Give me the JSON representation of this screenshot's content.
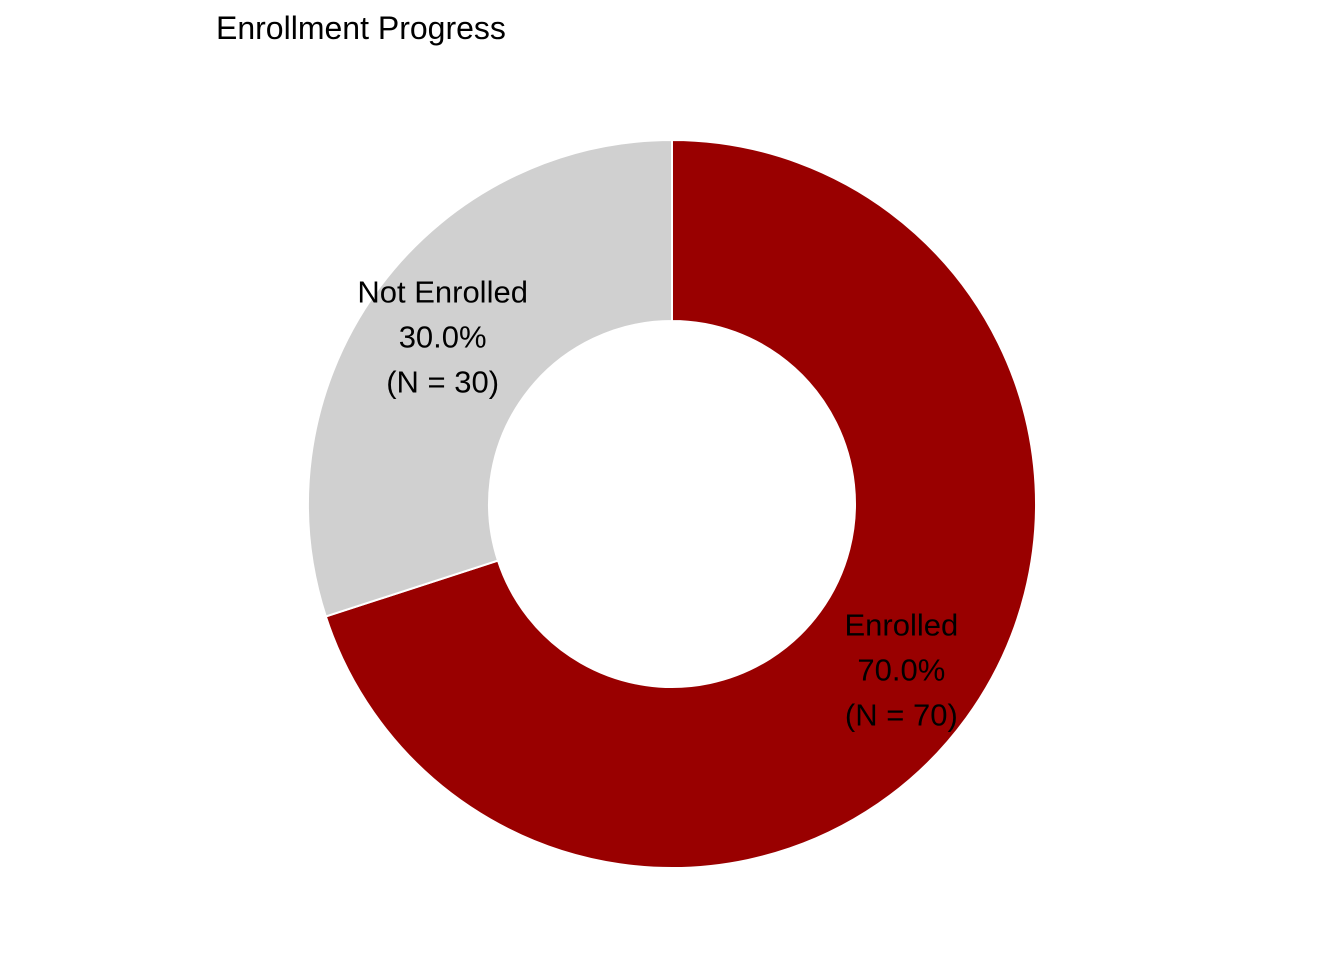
{
  "chart_data": {
    "type": "pie",
    "title": "Enrollment Progress",
    "donut": true,
    "slices": [
      {
        "name": "Enrolled",
        "value": 70,
        "percent_label": "70.0%",
        "count_label": "(N = 70)",
        "color": "#990000"
      },
      {
        "name": "Not Enrolled",
        "value": 30,
        "percent_label": "30.0%",
        "count_label": "(N = 30)",
        "color": "#D0D0D0"
      }
    ]
  }
}
